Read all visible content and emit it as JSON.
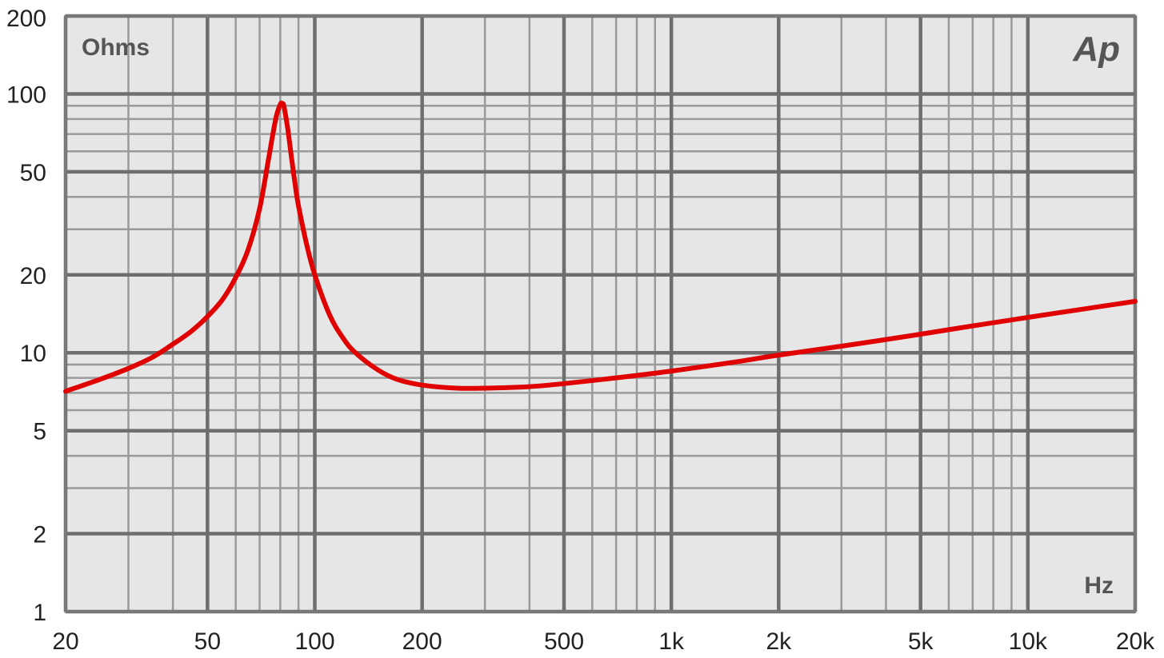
{
  "chart_data": {
    "type": "line",
    "title": "",
    "ylabel": "Ohms",
    "xlabel": "Hz",
    "logo_text": "Ap",
    "x_scale": "log",
    "y_scale": "log",
    "xlim": [
      20,
      20000
    ],
    "ylim": [
      1,
      200
    ],
    "grid": true,
    "x_ticks": [
      {
        "value": 20,
        "label": "20"
      },
      {
        "value": 50,
        "label": "50"
      },
      {
        "value": 100,
        "label": "100"
      },
      {
        "value": 200,
        "label": "200"
      },
      {
        "value": 500,
        "label": "500"
      },
      {
        "value": 1000,
        "label": "1k"
      },
      {
        "value": 2000,
        "label": "2k"
      },
      {
        "value": 5000,
        "label": "5k"
      },
      {
        "value": 10000,
        "label": "10k"
      },
      {
        "value": 20000,
        "label": "20k"
      }
    ],
    "y_ticks": [
      {
        "value": 1,
        "label": "1"
      },
      {
        "value": 2,
        "label": "2"
      },
      {
        "value": 5,
        "label": "5"
      },
      {
        "value": 10,
        "label": "10"
      },
      {
        "value": 20,
        "label": "20"
      },
      {
        "value": 50,
        "label": "50"
      },
      {
        "value": 100,
        "label": "100"
      },
      {
        "value": 200,
        "label": "200"
      }
    ],
    "series": [
      {
        "color": "#e00000",
        "x": [
          20,
          25,
          30,
          35,
          40,
          45,
          50,
          55,
          60,
          65,
          70,
          74,
          76,
          78,
          80,
          81,
          82,
          84,
          86,
          88,
          90,
          95,
          100,
          110,
          120,
          130,
          150,
          170,
          200,
          250,
          300,
          400,
          500,
          700,
          1000,
          1500,
          2000,
          3000,
          5000,
          7000,
          10000,
          15000,
          20000
        ],
        "y": [
          7.1,
          7.9,
          8.7,
          9.6,
          10.8,
          12.1,
          13.8,
          16.0,
          19.5,
          25.0,
          36.0,
          55.0,
          68.0,
          82.0,
          91.0,
          92.0,
          89.0,
          73.0,
          57.0,
          45.0,
          37.0,
          26.0,
          20.0,
          14.0,
          11.4,
          10.0,
          8.6,
          7.9,
          7.5,
          7.3,
          7.3,
          7.4,
          7.6,
          8.0,
          8.5,
          9.2,
          9.8,
          10.6,
          11.8,
          12.7,
          13.7,
          14.9,
          15.8
        ]
      }
    ]
  }
}
